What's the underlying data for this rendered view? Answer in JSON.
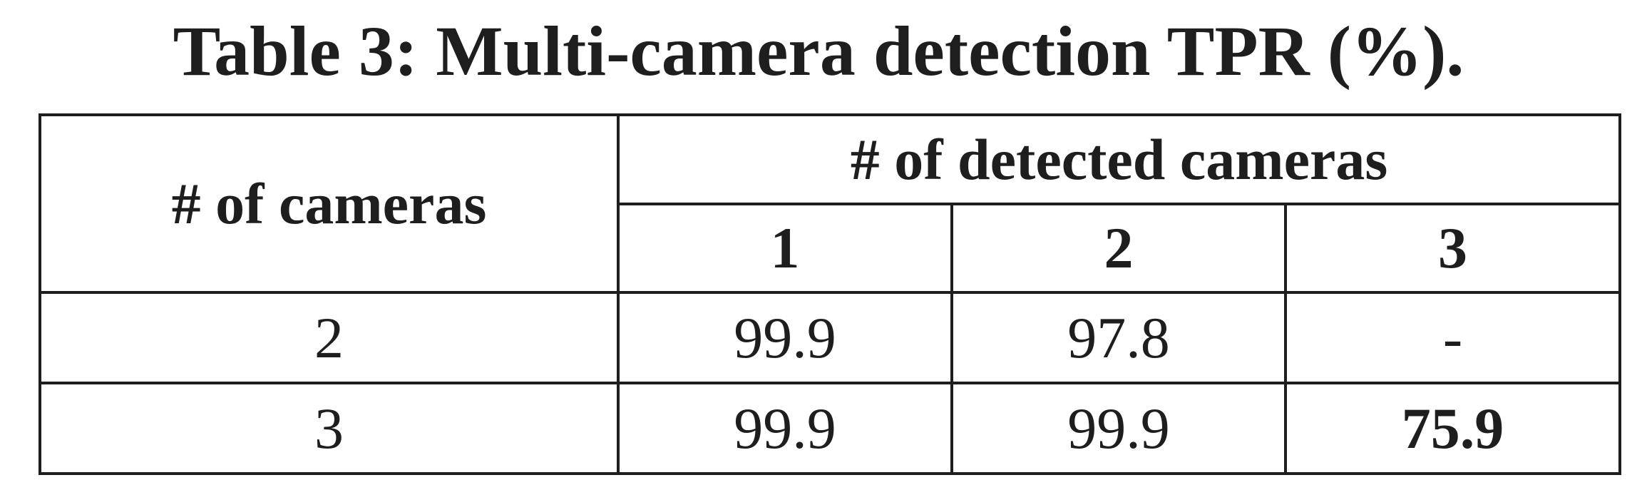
{
  "caption": "Table 3: Multi-camera detection TPR (%).",
  "table": {
    "row_header": "# of cameras",
    "group_header": "# of detected cameras",
    "columns": [
      "1",
      "2",
      "3"
    ],
    "rows": [
      {
        "label": "2",
        "cells": [
          "99.9",
          "97.8",
          "-"
        ]
      },
      {
        "label": "3",
        "cells": [
          "99.9",
          "99.9",
          "75.9"
        ]
      }
    ],
    "bold_cells": [
      {
        "row": 1,
        "col": 2,
        "value": "75.9"
      }
    ]
  }
}
